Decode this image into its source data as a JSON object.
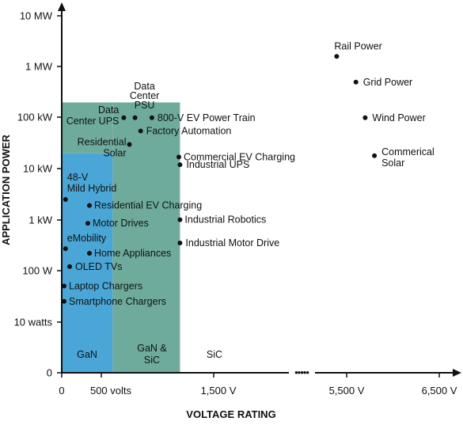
{
  "chart_data": {
    "type": "scatter",
    "xlabel": "VOLTAGE RATING",
    "ylabel": "APPLICATION POWER",
    "x_ticks": [
      "0",
      "500 volts",
      "1,500 V",
      "5,500 V",
      "6,500 V"
    ],
    "y_ticks": [
      "10 MW",
      "1 MW",
      "100 kW",
      "10 kW",
      "1 kW",
      "100 W",
      "10 watts",
      "0"
    ],
    "axis_break_marks": "•••••",
    "regions": [
      {
        "name": "GaN",
        "color": "#4aa6d6",
        "x_range_v": [
          0,
          600
        ],
        "y_top": "~20 kW"
      },
      {
        "name": "GaN & SiC",
        "color": "#6eab9c",
        "x_range_v": [
          600,
          1200
        ],
        "y_top": "~200 kW"
      },
      {
        "name": "SiC",
        "color": "#ffffff"
      }
    ],
    "points": [
      {
        "label": "Rail Power",
        "voltage_v": 5200,
        "power": "1.6 MW"
      },
      {
        "label": "Grid Power",
        "voltage_v": 5600,
        "power": "500 kW"
      },
      {
        "label": "Wind Power",
        "voltage_v": 5700,
        "power": "100 kW"
      },
      {
        "label": "Commerical Solar",
        "voltage_v": 5800,
        "power": "18 kW"
      },
      {
        "label": "Data Center PSU",
        "voltage_v": 800,
        "power": "100 kW"
      },
      {
        "label": "Data Center UPS",
        "voltage_v": 700,
        "power": "100 kW"
      },
      {
        "label": "800-V EV Power Train",
        "voltage_v": 950,
        "power": "100 kW"
      },
      {
        "label": "Factory Automation",
        "voltage_v": 850,
        "power": "55 kW"
      },
      {
        "label": "Residential Solar",
        "voltage_v": 750,
        "power": "30 kW"
      },
      {
        "label": "Commercial EV Charging",
        "voltage_v": 1190,
        "power": "17 kW"
      },
      {
        "label": "Industrial UPS",
        "voltage_v": 1200,
        "power": "12 kW"
      },
      {
        "label": "48-V Mild Hybrid",
        "voltage_v": 48,
        "power": "2.5 kW"
      },
      {
        "label": "Residential EV Charging",
        "voltage_v": 350,
        "power": "1.9 kW"
      },
      {
        "label": "Industrial Robotics",
        "voltage_v": 1200,
        "power": "1 kW"
      },
      {
        "label": "Motor Drives",
        "voltage_v": 330,
        "power": "850 W"
      },
      {
        "label": "eMobility",
        "voltage_v": 48,
        "power": "270 W"
      },
      {
        "label": "Industrial Motor Drive",
        "voltage_v": 1200,
        "power": "350 W"
      },
      {
        "label": "Home Appliances",
        "voltage_v": 350,
        "power": "220 W"
      },
      {
        "label": "OLED TVs",
        "voltage_v": 100,
        "power": "120 W"
      },
      {
        "label": "Laptop Chargers",
        "voltage_v": 30,
        "power": "50 W"
      },
      {
        "label": "Smartphone Chargers",
        "voltage_v": 30,
        "power": "25 W"
      }
    ]
  }
}
